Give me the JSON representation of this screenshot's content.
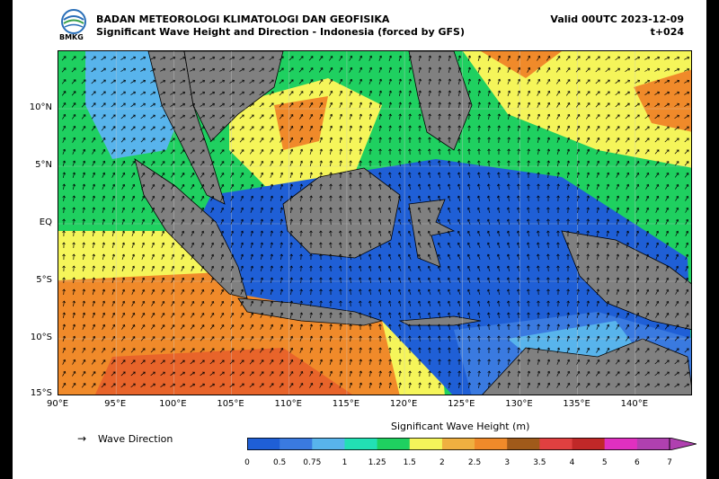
{
  "header": {
    "agency": "BADAN METEOROLOGI KLIMATOLOGI DAN GEOFISIKA",
    "subtitle": "Significant Wave Height and Direction - Indonesia (forced by GFS)",
    "valid": "Valid 00UTC 2023-12-09",
    "lead": "t+024",
    "logo_text": "BMKG"
  },
  "map": {
    "lon_range": [
      90,
      145
    ],
    "lat_range": [
      -15,
      15
    ],
    "lat_ticks": [
      "10°N",
      "5°N",
      "EQ",
      "5°S",
      "10°S",
      "15°S"
    ],
    "lon_ticks": [
      "90°E",
      "95°E",
      "100°E",
      "105°E",
      "110°E",
      "115°E",
      "120°E",
      "125°E",
      "130°E",
      "135°E",
      "140°E"
    ],
    "land_color": "#808080",
    "coastline_color": "#000000"
  },
  "legend": {
    "arrow_symbol": "→",
    "arrow_label": "Wave Direction"
  },
  "colorbar": {
    "title": "Significant Wave Height (m)",
    "ticks": [
      "0",
      "0.5",
      "0.75",
      "1",
      "1.25",
      "1.5",
      "2",
      "2.5",
      "3",
      "3.5",
      "4",
      "5",
      "6",
      "7"
    ],
    "colors": [
      "#1f5fd6",
      "#3a7ae0",
      "#58b4ec",
      "#22e0b4",
      "#1fd060",
      "#f5f55a",
      "#f0b040",
      "#f08a2a",
      "#a05a1a",
      "#e04040",
      "#c02828",
      "#e030c0",
      "#b040b0"
    ]
  }
}
